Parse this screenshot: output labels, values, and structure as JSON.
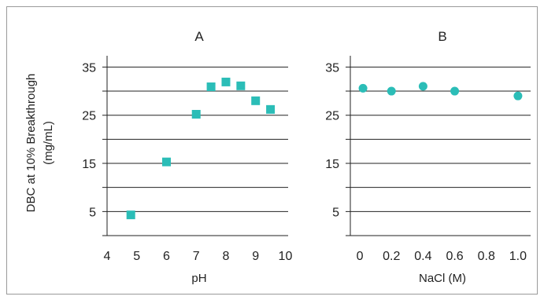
{
  "colors": {
    "marker": "#2bbdb7",
    "grid": "#222222",
    "frame": "#9a9a9a"
  },
  "ylabel_lines": [
    "DBC at 10% Breakthrough",
    "(mg/mL)"
  ],
  "chart_data": [
    {
      "type": "scatter",
      "title": "A",
      "xlabel": "pH",
      "ylabel": "DBC at 10% Breakthrough (mg/mL)",
      "marker": "square",
      "xlim": [
        4,
        10.2
      ],
      "ylim": [
        0,
        38
      ],
      "x_ticks": [
        4,
        5,
        6,
        7,
        8,
        9,
        10
      ],
      "x_tick_labels": [
        "4",
        "5",
        "6",
        "7",
        "8",
        "9",
        "10"
      ],
      "y_ticks": [
        5,
        15,
        25,
        35
      ],
      "y_tick_labels": [
        "5",
        "15",
        "25",
        "35"
      ],
      "gridlines_y": [
        5,
        10,
        15,
        20,
        25,
        30,
        35
      ],
      "points": [
        {
          "x": 4.8,
          "y": 4.3
        },
        {
          "x": 6.0,
          "y": 15.3
        },
        {
          "x": 7.0,
          "y": 25.2
        },
        {
          "x": 7.5,
          "y": 30.9
        },
        {
          "x": 8.0,
          "y": 31.9
        },
        {
          "x": 8.5,
          "y": 31.1
        },
        {
          "x": 9.0,
          "y": 28.0
        },
        {
          "x": 9.5,
          "y": 26.2
        }
      ]
    },
    {
      "type": "scatter",
      "title": "B",
      "xlabel": "NaCl (M)",
      "ylabel": "",
      "marker": "circle",
      "xlim": [
        -0.06,
        1.1
      ],
      "ylim": [
        0,
        38
      ],
      "x_ticks": [
        0,
        0.2,
        0.4,
        0.6,
        0.8,
        1.0
      ],
      "x_tick_labels": [
        "0",
        "0.2",
        "0.4",
        "0.6",
        "0.8",
        "1.0"
      ],
      "y_ticks": [
        5,
        15,
        25,
        35
      ],
      "y_tick_labels": [
        "5",
        "15",
        "25",
        "35"
      ],
      "gridlines_y": [
        5,
        10,
        15,
        20,
        25,
        30,
        35
      ],
      "points": [
        {
          "x": 0.02,
          "y": 30.6
        },
        {
          "x": 0.2,
          "y": 30.0
        },
        {
          "x": 0.4,
          "y": 31.0
        },
        {
          "x": 0.6,
          "y": 30.0
        },
        {
          "x": 1.0,
          "y": 29.0
        }
      ]
    }
  ]
}
